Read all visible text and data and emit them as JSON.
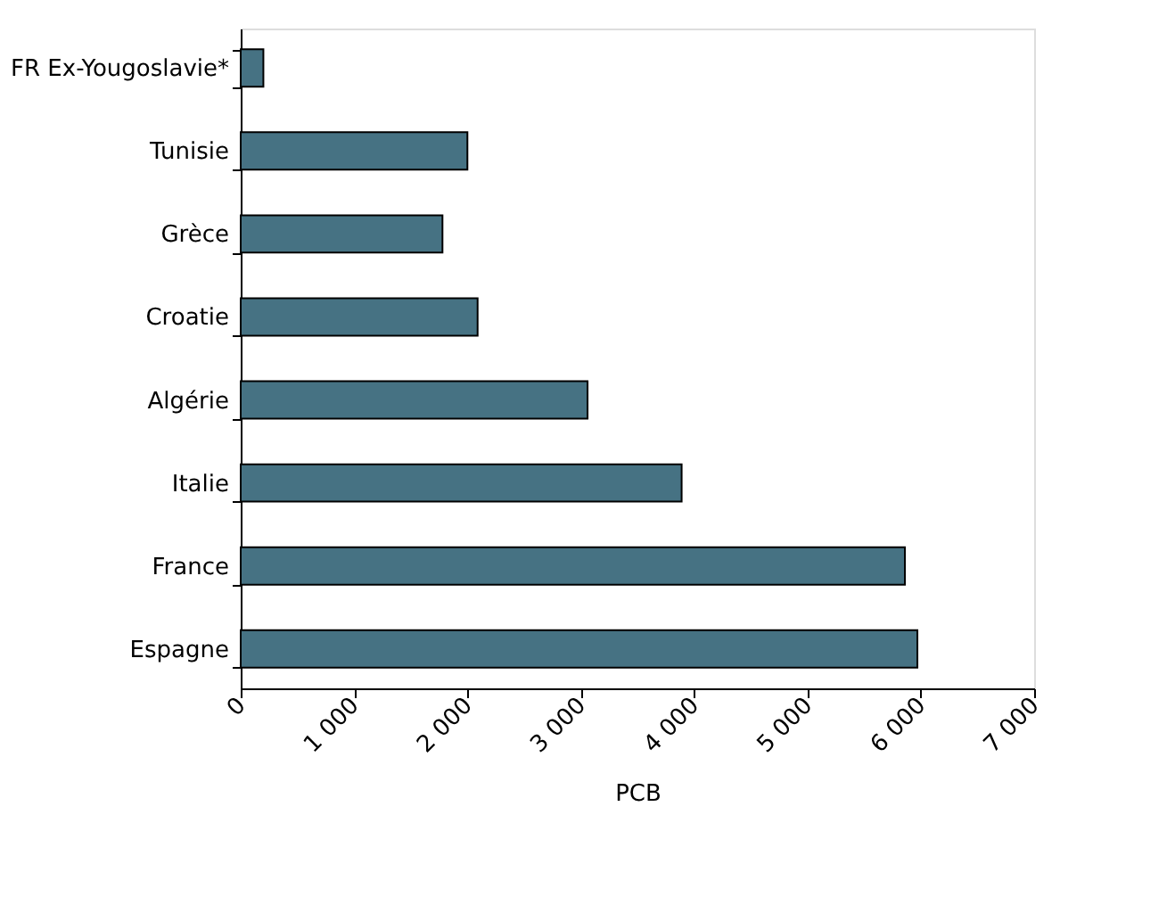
{
  "chart_data": {
    "type": "bar",
    "orientation": "horizontal",
    "xlabel": "PCB",
    "categories": [
      "FR Ex-Yougoslavie*",
      "Tunisie",
      "Grèce",
      "Croatie",
      "Algérie",
      "Italie",
      "France",
      "Espagne"
    ],
    "values": [
      200,
      2000,
      1780,
      2090,
      3060,
      3890,
      5860,
      5970
    ],
    "color": "#467283",
    "xlim": [
      0,
      7000
    ],
    "xticks": [
      0,
      {
        "value": 1000,
        "label": "1 000"
      },
      {
        "value": 2000,
        "label": "2 000"
      },
      {
        "value": 3000,
        "label": "3 000"
      },
      {
        "value": 4000,
        "label": "4 000"
      },
      {
        "value": 5000,
        "label": "5 000"
      },
      {
        "value": 6000,
        "label": "6 000"
      },
      {
        "value": 7000,
        "label": "7 000"
      }
    ],
    "grid": false
  }
}
